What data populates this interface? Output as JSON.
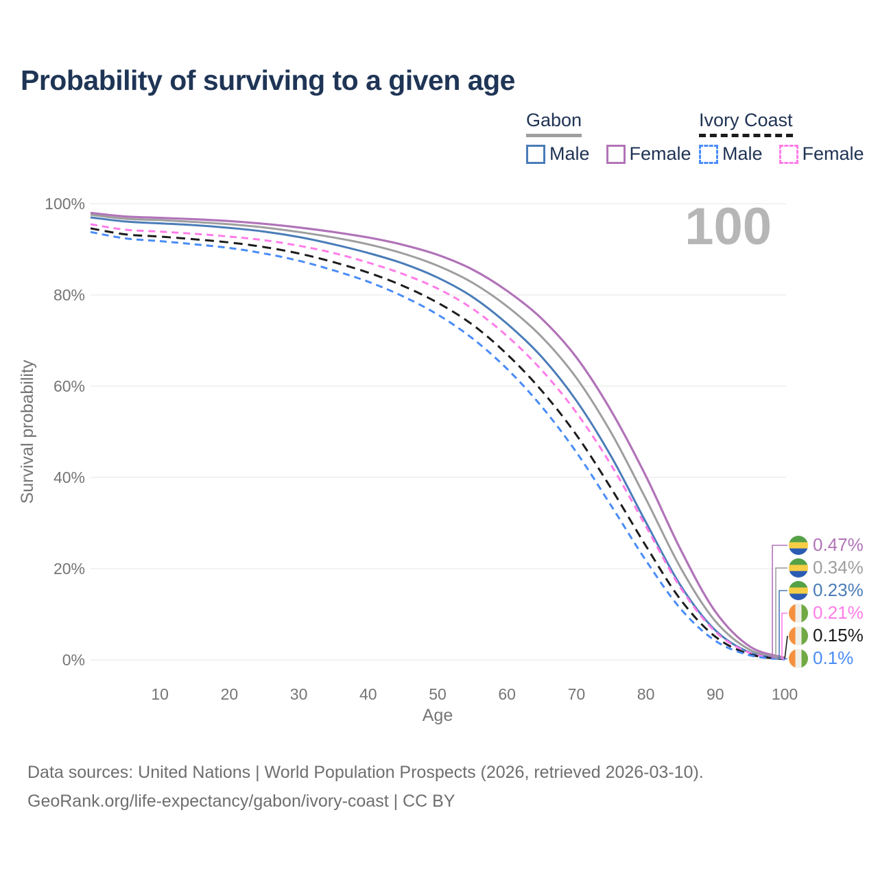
{
  "title": "Probability of surviving to a given age",
  "watermark_age": "100",
  "legend": {
    "gabon": {
      "label": "Gabon",
      "male": "Male",
      "female": "Female"
    },
    "ivory": {
      "label": "Ivory Coast",
      "male": "Male",
      "female": "Female"
    }
  },
  "colors": {
    "title_text": "#1f3556",
    "legend_text": "#203354",
    "axis_text": "#757575",
    "gridline": "#e9e9e9",
    "watermark": "#b6b6b6",
    "footer_text": "#6e6e6e"
  },
  "chart_data": {
    "type": "line",
    "xlabel": "Age",
    "ylabel": "Survival probability",
    "xlim": [
      0,
      100
    ],
    "ylim": [
      0,
      100
    ],
    "grid": "horizontal",
    "xticks": [
      10,
      20,
      30,
      40,
      50,
      60,
      70,
      80,
      90,
      100
    ],
    "yticks": [
      {
        "value": 0,
        "label": "0%"
      },
      {
        "value": 20,
        "label": "20%"
      },
      {
        "value": 40,
        "label": "40%"
      },
      {
        "value": 60,
        "label": "60%"
      },
      {
        "value": 80,
        "label": "80%"
      },
      {
        "value": 100,
        "label": "100%"
      }
    ],
    "x": [
      0,
      5,
      10,
      15,
      20,
      25,
      30,
      35,
      40,
      45,
      50,
      55,
      60,
      65,
      70,
      75,
      80,
      85,
      90,
      95,
      100
    ],
    "series": [
      {
        "name": "Gabon Female",
        "country": "gabon",
        "color": "#b173b8",
        "dash": "",
        "line_width": 3.2,
        "end_label": "0.47%",
        "values": [
          98.0,
          97.2,
          96.9,
          96.6,
          96.2,
          95.6,
          94.8,
          93.8,
          92.6,
          91.0,
          88.8,
          85.6,
          80.9,
          74.8,
          66.3,
          54.6,
          40.3,
          24.2,
          10.6,
          2.9,
          0.47
        ]
      },
      {
        "name": "Gabon Both sexes",
        "country": "gabon",
        "color": "#9e9e9e",
        "dash": "",
        "line_width": 3,
        "end_label": "0.34%",
        "values": [
          97.6,
          96.7,
          96.4,
          96.0,
          95.5,
          94.8,
          93.8,
          92.6,
          91.1,
          89.1,
          86.4,
          82.7,
          77.5,
          70.8,
          61.8,
          49.8,
          35.3,
          20.2,
          8.5,
          2.2,
          0.34
        ]
      },
      {
        "name": "Gabon Male",
        "country": "gabon",
        "color": "#4a7cb8",
        "dash": "",
        "line_width": 3,
        "end_label": "0.23%",
        "values": [
          97.0,
          96.1,
          95.7,
          95.3,
          94.7,
          93.9,
          92.7,
          91.1,
          89.2,
          86.9,
          83.8,
          79.6,
          73.7,
          66.4,
          56.8,
          44.6,
          30.2,
          16.3,
          6.5,
          1.6,
          0.23
        ]
      },
      {
        "name": "Ivory Coast Female",
        "country": "ivory-coast",
        "color": "#ff7ce8",
        "dash": "10 7",
        "line_width": 3,
        "end_label": "0.21%",
        "values": [
          95.5,
          94.3,
          93.9,
          93.4,
          92.8,
          92.0,
          90.8,
          89.2,
          87.1,
          84.6,
          81.4,
          77.0,
          71.0,
          63.5,
          54.2,
          42.7,
          29.3,
          15.8,
          6.2,
          1.5,
          0.21
        ]
      },
      {
        "name": "Ivory Coast Both sexes",
        "country": "ivory-coast",
        "color": "#1c1c1c",
        "dash": "13 8",
        "line_width": 3,
        "end_label": "0.15%",
        "values": [
          94.6,
          93.3,
          92.8,
          92.2,
          91.5,
          90.5,
          89.1,
          87.2,
          84.9,
          82.0,
          78.3,
          73.5,
          67.0,
          59.0,
          49.3,
          37.6,
          25.0,
          13.2,
          5.1,
          1.2,
          0.15
        ]
      },
      {
        "name": "Ivory Coast Male",
        "country": "ivory-coast",
        "color": "#4a8cf7",
        "dash": "10 7",
        "line_width": 3,
        "end_label": "0.1%",
        "values": [
          93.8,
          92.4,
          91.8,
          91.1,
          90.3,
          89.1,
          87.5,
          85.4,
          82.9,
          79.7,
          75.7,
          70.5,
          63.8,
          55.5,
          45.5,
          33.8,
          21.8,
          11.2,
          4.2,
          1.0,
          0.1
        ]
      }
    ]
  },
  "footer": {
    "line1": "Data sources: United Nations | World Population Prospects (2026, retrieved 2026-03-10).",
    "line2": "GeoRank.org/life-expectancy/gabon/ivory-coast | CC BY"
  }
}
